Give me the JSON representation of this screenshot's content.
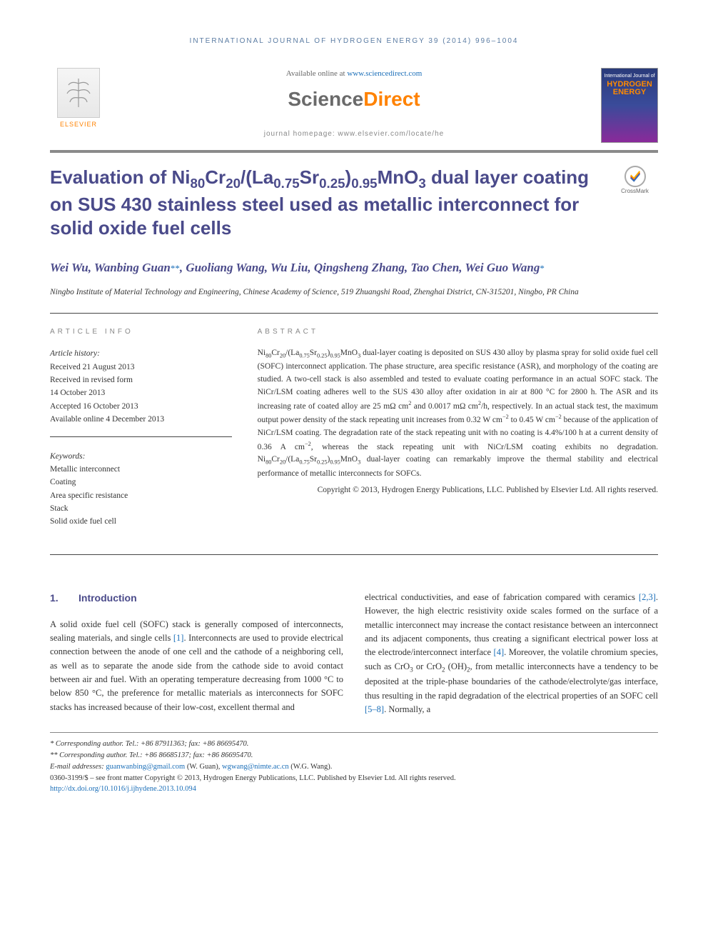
{
  "running_head": "INTERNATIONAL JOURNAL OF HYDROGEN ENERGY 39 (2014) 996–1004",
  "publisher": {
    "name": "ELSEVIER"
  },
  "available_line_prefix": "Available online at ",
  "available_line_link": "www.sciencedirect.com",
  "sd_logo_sci": "Science",
  "sd_logo_direct": "Direct",
  "homepage_line": "journal homepage: www.elsevier.com/locate/he",
  "journal_cover": {
    "line1": "International Journal of",
    "line2a": "HYDROGEN",
    "line2b": "ENERGY"
  },
  "crossmark_label": "CrossMark",
  "title_html": "Evaluation of Ni<sub>80</sub>Cr<sub>20</sub>/(La<sub>0.75</sub>Sr<sub>0.25</sub>)<sub>0.95</sub>MnO<sub>3</sub> dual layer coating on SUS 430 stainless steel used as metallic interconnect for solid oxide fuel cells",
  "authors_html": "Wei Wu, Wanbing Guan<a class=\"corr-link\" href=\"#\">**</a>, Guoliang Wang, Wu Liu, Qingsheng Zhang, Tao Chen, Wei Guo Wang<a class=\"corr-link\" href=\"#\">*</a>",
  "affiliation": "Ningbo Institute of Material Technology and Engineering, Chinese Academy of Science, 519 Zhuangshi Road, Zhenghai District, CN-315201, Ningbo, PR China",
  "article_info": {
    "head": "ARTICLE INFO",
    "history_label": "Article history:",
    "received": "Received 21 August 2013",
    "revised1": "Received in revised form",
    "revised2": "14 October 2013",
    "accepted": "Accepted 16 October 2013",
    "online": "Available online 4 December 2013",
    "keywords_label": "Keywords:",
    "keywords": [
      "Metallic interconnect",
      "Coating",
      "Area specific resistance",
      "Stack",
      "Solid oxide fuel cell"
    ]
  },
  "abstract": {
    "head": "ABSTRACT",
    "text_html": "Ni<sub>80</sub>Cr<sub>20</sub>/(La<sub>0.75</sub>Sr<sub>0.25</sub>)<sub>0.95</sub>MnO<sub>3</sub> dual-layer coating is deposited on SUS 430 alloy by plasma spray for solid oxide fuel cell (SOFC) interconnect application. The phase structure, area specific resistance (ASR), and morphology of the coating are studied. A two-cell stack is also assembled and tested to evaluate coating performance in an actual SOFC stack. The NiCr/LSM coating adheres well to the SUS 430 alloy after oxidation in air at 800 °C for 2800 h. The ASR and its increasing rate of coated alloy are 25 mΩ cm<sup>2</sup> and 0.0017 mΩ cm<sup>2</sup>/h, respectively. In an actual stack test, the maximum output power density of the stack repeating unit increases from 0.32 W cm<sup>−2</sup> to 0.45 W cm<sup>−2</sup> because of the application of NiCr/LSM coating. The degradation rate of the stack repeating unit with no coating is 4.4%/100 h at a current density of 0.36 A cm<sup>−2</sup>, whereas the stack repeating unit with NiCr/LSM coating exhibits no degradation. Ni<sub>80</sub>Cr<sub>20</sub>/(La<sub>0.75</sub>Sr<sub>0.25</sub>)<sub>0.95</sub>MnO<sub>3</sub> dual-layer coating can remarkably improve the thermal stability and electrical performance of metallic interconnects for SOFCs.",
    "copyright": "Copyright © 2013, Hydrogen Energy Publications, LLC. Published by Elsevier Ltd. All rights reserved."
  },
  "section1": {
    "num": "1.",
    "title": "Introduction",
    "col1_html": "A solid oxide fuel cell (SOFC) stack is generally composed of interconnects, sealing materials, and single cells <a class=\"ref-link\" href=\"#\">[1]</a>. Interconnects are used to provide electrical connection between the anode of one cell and the cathode of a neighboring cell, as well as to separate the anode side from the cathode side to avoid contact between air and fuel. With an operating temperature decreasing from 1000 °C to below 850 °C, the preference for metallic materials as interconnects for SOFC stacks has increased because of their low-cost, excellent thermal and",
    "col2_html": "electrical conductivities, and ease of fabrication compared with ceramics <a class=\"ref-link\" href=\"#\">[2,3]</a>. However, the high electric resistivity oxide scales formed on the surface of a metallic interconnect may increase the contact resistance between an interconnect and its adjacent components, thus creating a significant electrical power loss at the electrode/interconnect interface <a class=\"ref-link\" href=\"#\">[4]</a>. Moreover, the volatile chromium species, such as CrO<sub>3</sub> or CrO<sub>2</sub> (OH)<sub>2</sub>, from metallic interconnects have a tendency to be deposited at the triple-phase boundaries of the cathode/electrolyte/gas interface, thus resulting in the rapid degradation of the electrical properties of an SOFC cell <a class=\"ref-link\" href=\"#\">[5–8]</a>. Normally, a"
  },
  "footnotes": {
    "corr1": "* Corresponding author. Tel.: +86 87911363; fax: +86 86695470.",
    "corr2": "** Corresponding author. Tel.: +86 86685137; fax: +86 86695470.",
    "emails_prefix": "E-mail addresses: ",
    "email1": "guanwanbing@gmail.com",
    "email1_name": " (W. Guan), ",
    "email2": "wgwang@nimte.ac.cn",
    "email2_name": " (W.G. Wang).",
    "copyright_line": "0360-3199/$ – see front matter Copyright © 2013, Hydrogen Energy Publications, LLC. Published by Elsevier Ltd. All rights reserved.",
    "doi_url": "http://dx.doi.org/10.1016/j.ijhydene.2013.10.094"
  },
  "colors": {
    "heading": "#4a4a8a",
    "link": "#1a6eb8",
    "sd_orange": "#ff8200",
    "rule": "#8a8a8a"
  }
}
